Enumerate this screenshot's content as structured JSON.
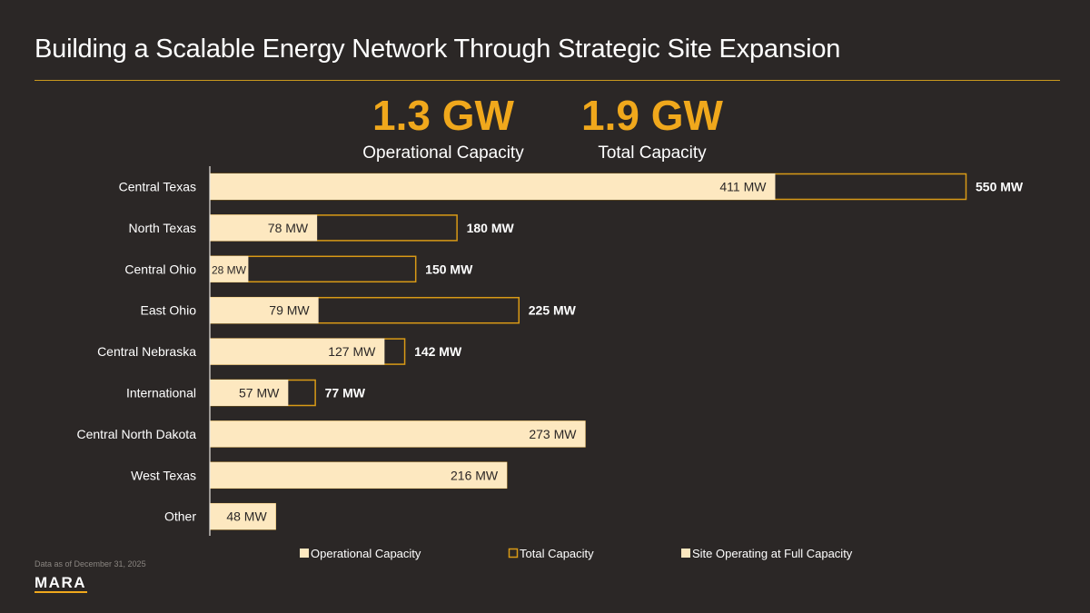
{
  "title": "Building a Scalable Energy Network Through Strategic Site Expansion",
  "kpis": {
    "operational": {
      "value": "1.3 GW",
      "label": "Operational Capacity"
    },
    "total": {
      "value": "1.9 GW",
      "label": "Total Capacity"
    }
  },
  "footnote": "Data as of December 31, 2025",
  "logo": "MARA",
  "colors": {
    "background": "#2b2726",
    "operational_fill": "#fde8c0",
    "total_outline": "#d99a16",
    "accent": "#f0a81c"
  },
  "chart_data": {
    "type": "bar",
    "orientation": "horizontal",
    "stacked": "overlay",
    "categories": [
      "Central Texas",
      "North Texas",
      "Central Ohio",
      "East Ohio",
      "Central Nebraska",
      "International",
      "Central North Dakota",
      "West Texas",
      "Other"
    ],
    "series": [
      {
        "name": "Operational Capacity",
        "values": [
          411,
          78,
          28,
          79,
          127,
          57,
          273,
          216,
          48
        ],
        "labels": [
          "411 MW",
          "78 MW",
          "28 MW",
          "79 MW",
          "127 MW",
          "57 MW",
          "273 MW",
          "216 MW",
          "48 MW"
        ]
      },
      {
        "name": "Total Capacity",
        "values": [
          550,
          180,
          150,
          225,
          142,
          77,
          273,
          216,
          48
        ],
        "labels": [
          "550 MW",
          "180 MW",
          "150 MW",
          "225 MW",
          "142 MW",
          "77 MW",
          "",
          "",
          ""
        ]
      }
    ],
    "legend": [
      "Operational Capacity",
      "Total Capacity",
      "Site Operating at Full Capacity"
    ],
    "legend_position": "bottom",
    "unit": "MW",
    "xlim": [
      0,
      550
    ]
  }
}
